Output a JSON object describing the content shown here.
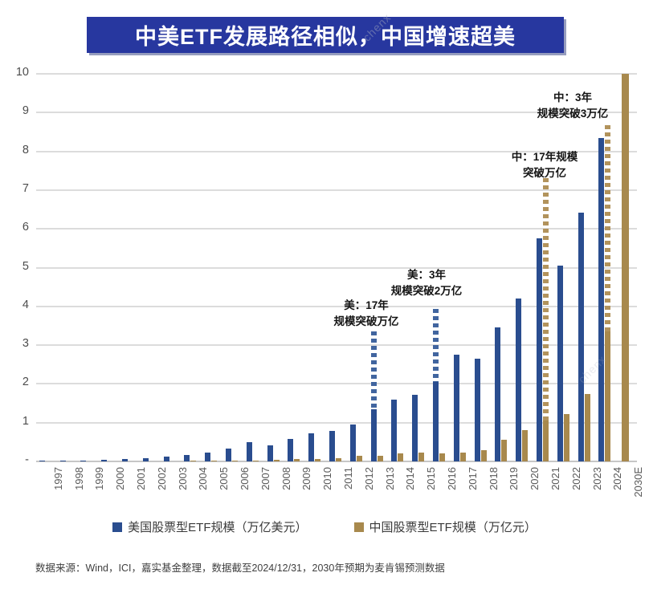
{
  "title": "中美ETF发展路径相似，中国增速超美",
  "watermark": "chenx",
  "footer": "数据来源：Wind，ICI，嘉实基金整理，数据截至2024/12/31，2030年预期为麦肯锡预测数据",
  "colors": {
    "banner": "#27379f",
    "us_bar": "#2a4d8f",
    "cn_bar": "#a8894d",
    "us_dash": "#41659f",
    "cn_dash": "#b2935c",
    "grid": "#dcdcdc",
    "axis_line": "#c6c6c6",
    "tick_text": "#595959",
    "annotation_text": "#141414"
  },
  "chart_data": {
    "type": "bar",
    "title": "中美ETF发展路径相似，中国增速超美",
    "categories": [
      "1997",
      "1998",
      "1999",
      "2000",
      "2001",
      "2002",
      "2003",
      "2004",
      "2005",
      "2006",
      "2007",
      "2008",
      "2009",
      "2010",
      "2011",
      "2012",
      "2013",
      "2014",
      "2015",
      "2016",
      "2017",
      "2018",
      "2019",
      "2020",
      "2021",
      "2022",
      "2023",
      "2024",
      "2030E"
    ],
    "series": [
      {
        "name": "美国股票型ETF规模（万亿美元）",
        "color_key": "us_bar",
        "values": [
          0.01,
          0.02,
          0.03,
          0.05,
          0.07,
          0.08,
          0.12,
          0.17,
          0.23,
          0.33,
          0.5,
          0.42,
          0.59,
          0.73,
          0.78,
          0.95,
          1.35,
          1.6,
          1.72,
          2.05,
          2.76,
          2.66,
          3.45,
          4.2,
          5.76,
          5.05,
          6.42,
          8.35,
          null
        ]
      },
      {
        "name": "中国股票型ETF规模（万亿元）",
        "color_key": "cn_bar",
        "values": [
          null,
          null,
          null,
          null,
          null,
          null,
          null,
          0.01,
          0.015,
          0.02,
          0.03,
          0.035,
          0.07,
          0.07,
          0.08,
          0.15,
          0.14,
          0.2,
          0.22,
          0.2,
          0.22,
          0.28,
          0.55,
          0.8,
          1.05,
          1.22,
          1.73,
          3.35,
          10
        ]
      }
    ],
    "ylim": [
      0,
      10
    ],
    "ytick_labels_bottom_to_top": [
      "-",
      "1",
      "2",
      "3",
      "4",
      "5",
      "6",
      "7",
      "8",
      "9",
      "10"
    ],
    "xlabel": "",
    "ylabel": "",
    "grid": true,
    "legend_position": "bottom",
    "annotations": [
      {
        "id": "us-17y",
        "lines": [
          "美：17年",
          "规模突破万亿"
        ],
        "year": "2013",
        "series": "us",
        "dash_top_value": 3.35,
        "text_cx": 456,
        "text_top": 371
      },
      {
        "id": "us-3y",
        "lines": [
          "美：3年",
          "规模突破2万亿"
        ],
        "year": "2016",
        "series": "us",
        "dash_top_value": 3.93,
        "text_cx": 531,
        "text_top": 333
      },
      {
        "id": "cn-17y",
        "lines": [
          "中：17年规模",
          "突破万亿"
        ],
        "year": "2021",
        "series": "cn",
        "dash_top_value": 7.3,
        "text_cx": 678,
        "text_top": 186
      },
      {
        "id": "cn-3y",
        "lines": [
          "中：3年",
          "规模突破3万亿"
        ],
        "year": "2024",
        "series": "cn",
        "dash_top_value": 8.68,
        "text_cx": 713,
        "text_top": 112
      }
    ]
  },
  "legend": {
    "us_label": "美国股票型ETF规模（万亿美元）",
    "cn_label": "中国股票型ETF规模（万亿元）"
  }
}
